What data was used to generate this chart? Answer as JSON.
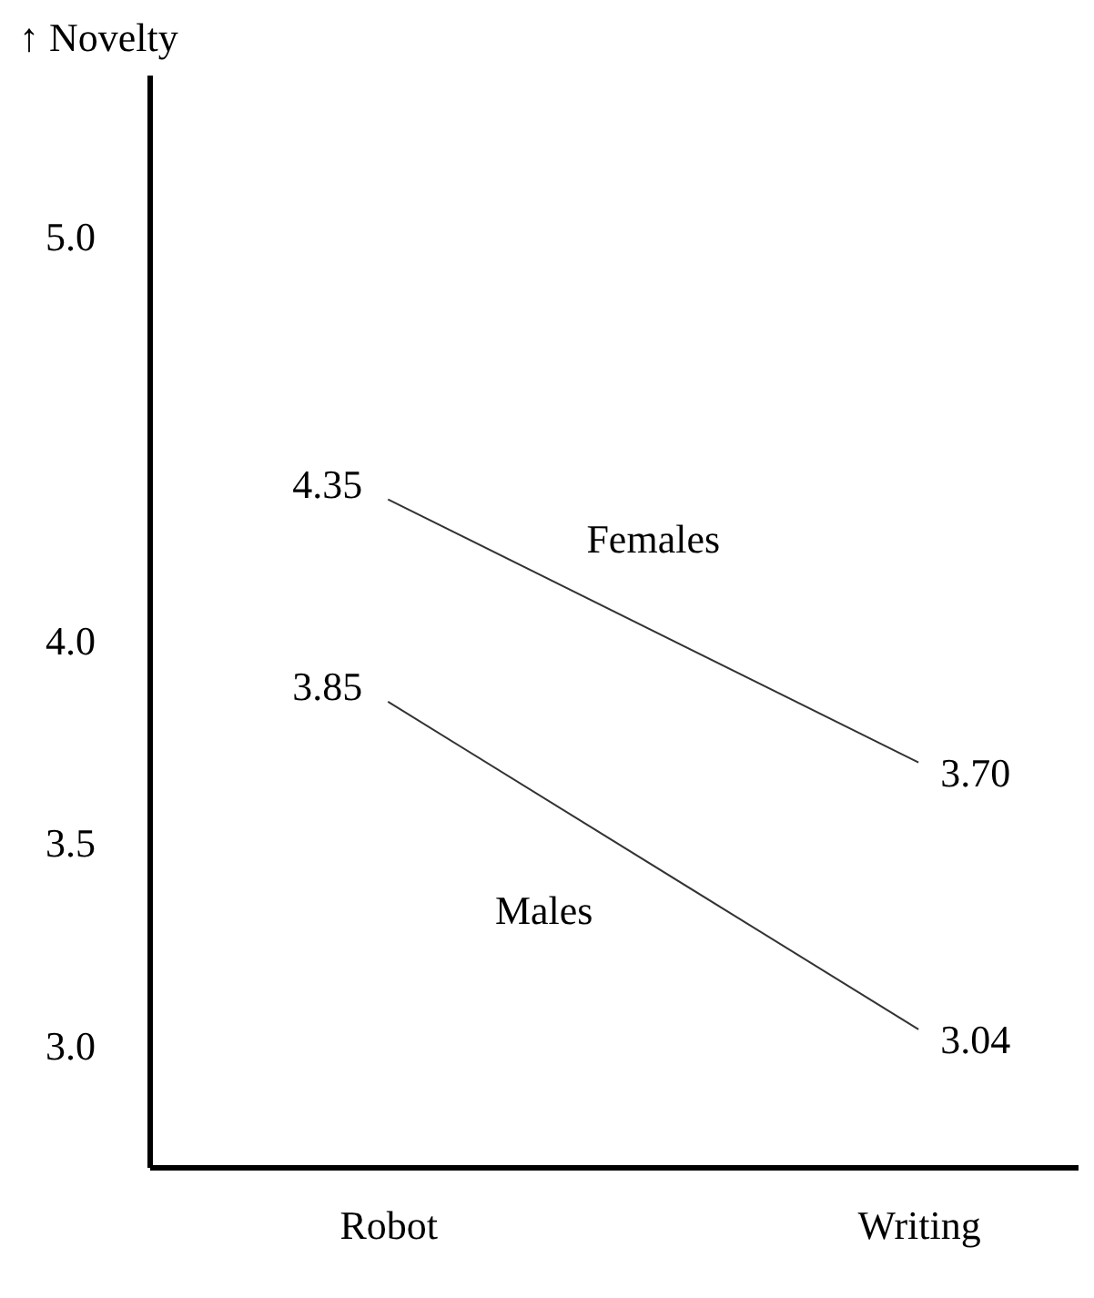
{
  "chart_data": {
    "type": "line",
    "ylabel": "↑ Novelty",
    "categories": [
      "Robot",
      "Writing"
    ],
    "series": [
      {
        "name": "Females",
        "color": "#333333",
        "values": [
          4.35,
          3.7
        ],
        "value_labels": [
          "4.35",
          "3.70"
        ]
      },
      {
        "name": "Males",
        "color": "#333333",
        "values": [
          3.85,
          3.04
        ],
        "value_labels": [
          "3.85",
          "3.04"
        ]
      }
    ],
    "ylim": [
      2.7,
      5.4
    ],
    "yticks": [
      {
        "value": 3,
        "label": "3.0"
      },
      3.5,
      {
        "value": 4,
        "label": "4.0"
      },
      {
        "value": 5,
        "label": "5.0"
      }
    ],
    "legend": false,
    "grid": false,
    "marker": "none",
    "line_style": "solid"
  }
}
